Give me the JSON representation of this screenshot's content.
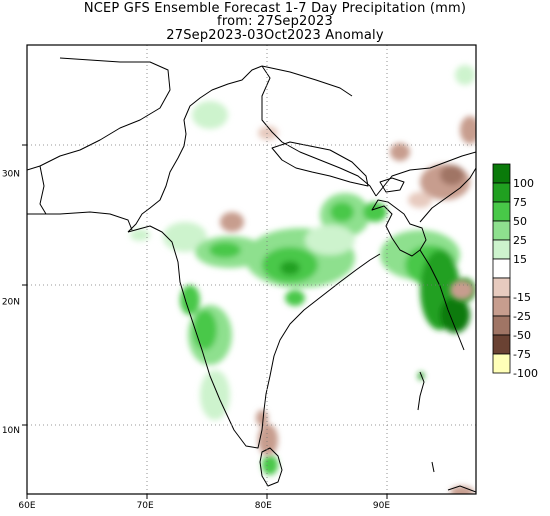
{
  "header": {
    "title": "NCEP GFS Ensemble Forecast 1-7 Day Precipitation (mm)",
    "from_line": "from: 27Sep2023",
    "period_line": "27Sep2023-03Oct2023 Anomaly"
  },
  "map": {
    "lon_range": [
      60,
      98
    ],
    "lat_range": [
      5,
      40
    ],
    "x_ticks": [
      {
        "value": 60,
        "label": "60E"
      },
      {
        "value": 70,
        "label": "70E"
      },
      {
        "value": 80,
        "label": "80E"
      },
      {
        "value": 90,
        "label": "90E"
      }
    ],
    "y_ticks": [
      {
        "value": 10,
        "label": "10N"
      },
      {
        "value": 20,
        "label": "20N"
      },
      {
        "value": 30,
        "label": "30N"
      }
    ],
    "grid": "dotted"
  },
  "legend": {
    "bins": [
      {
        "label": "100",
        "color": "#0a7a0a"
      },
      {
        "label": "75",
        "color": "#20a020"
      },
      {
        "label": "50",
        "color": "#48c848"
      },
      {
        "label": "25",
        "color": "#8ee08e"
      },
      {
        "label": "15",
        "color": "#cdf3cd"
      },
      {
        "label": "",
        "color": "#ffffff"
      },
      {
        "label": "-15",
        "color": "#e7cbbf"
      },
      {
        "label": "-25",
        "color": "#c79d8e"
      },
      {
        "label": "-50",
        "color": "#a07565"
      },
      {
        "label": "-75",
        "color": "#6a4233"
      },
      {
        "label": "-100",
        "color": "#ffffb8"
      }
    ]
  }
}
